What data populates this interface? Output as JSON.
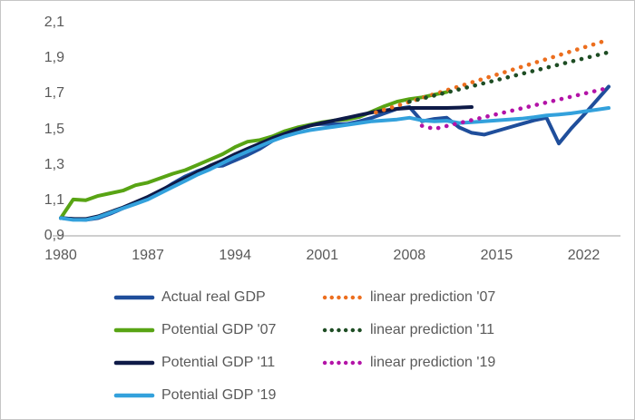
{
  "figure": {
    "background_color": "#ffffff",
    "border_color": "#c6c6c6",
    "title": ""
  },
  "chart_data": {
    "type": "line",
    "title": "",
    "xlabel": "",
    "ylabel": "",
    "grid": "off",
    "baseline_only": true,
    "axis_color": "#bfbfbf",
    "label_color": "#595959",
    "legend_position": "bottom",
    "legend_columns": 2,
    "x_axis": {
      "tick_labels": [
        "1980",
        "1987",
        "1994",
        "2001",
        "2008",
        "2015",
        "2022"
      ],
      "tick_values": [
        1980,
        1987,
        1994,
        2001,
        2008,
        2015,
        2022
      ],
      "range": [
        1980,
        2024
      ]
    },
    "y_axis": {
      "tick_labels": [
        "2,1",
        "1,9",
        "1,7",
        "1,5",
        "1,3",
        "1,1",
        "0,9"
      ],
      "tick_values": [
        2.1,
        1.9,
        1.7,
        1.5,
        1.3,
        1.1,
        0.9
      ],
      "range": [
        0.9,
        2.1
      ],
      "decimal_separator": ","
    },
    "series": [
      {
        "name": "Actual real GDP",
        "key": "actual-real-gdp",
        "style": "solid",
        "color": "#1f4e9b",
        "points": [
          [
            1980,
            1.0
          ],
          [
            1981,
            0.995
          ],
          [
            1982,
            0.99
          ],
          [
            1983,
            1.0
          ],
          [
            1984,
            1.025
          ],
          [
            1985,
            1.055
          ],
          [
            1986,
            1.085
          ],
          [
            1987,
            1.115
          ],
          [
            1988,
            1.15
          ],
          [
            1989,
            1.195
          ],
          [
            1990,
            1.235
          ],
          [
            1991,
            1.265
          ],
          [
            1992,
            1.29
          ],
          [
            1993,
            1.295
          ],
          [
            1994,
            1.325
          ],
          [
            1995,
            1.355
          ],
          [
            1996,
            1.39
          ],
          [
            1997,
            1.435
          ],
          [
            1998,
            1.475
          ],
          [
            1999,
            1.5
          ],
          [
            2000,
            1.525
          ],
          [
            2001,
            1.53
          ],
          [
            2002,
            1.528
          ],
          [
            2003,
            1.53
          ],
          [
            2004,
            1.545
          ],
          [
            2005,
            1.565
          ],
          [
            2006,
            1.59
          ],
          [
            2007,
            1.615
          ],
          [
            2008,
            1.625
          ],
          [
            2009,
            1.545
          ],
          [
            2010,
            1.558
          ],
          [
            2011,
            1.565
          ],
          [
            2012,
            1.51
          ],
          [
            2013,
            1.48
          ],
          [
            2014,
            1.47
          ],
          [
            2015,
            1.49
          ],
          [
            2016,
            1.51
          ],
          [
            2017,
            1.53
          ],
          [
            2018,
            1.55
          ],
          [
            2019,
            1.565
          ],
          [
            2020,
            1.42
          ],
          [
            2021,
            1.505
          ],
          [
            2022,
            1.58
          ],
          [
            2023,
            1.66
          ],
          [
            2024,
            1.74
          ]
        ]
      },
      {
        "name": "Potential GDP '07",
        "key": "potential-gdp-07",
        "style": "solid",
        "color": "#58a414",
        "points": [
          [
            1980,
            1.0
          ],
          [
            1981,
            1.105
          ],
          [
            1982,
            1.1
          ],
          [
            1983,
            1.125
          ],
          [
            1984,
            1.14
          ],
          [
            1985,
            1.155
          ],
          [
            1986,
            1.185
          ],
          [
            1987,
            1.2
          ],
          [
            1988,
            1.225
          ],
          [
            1989,
            1.25
          ],
          [
            1990,
            1.27
          ],
          [
            1991,
            1.3
          ],
          [
            1992,
            1.33
          ],
          [
            1993,
            1.36
          ],
          [
            1994,
            1.4
          ],
          [
            1995,
            1.43
          ],
          [
            1996,
            1.44
          ],
          [
            1997,
            1.46
          ],
          [
            1998,
            1.49
          ],
          [
            1999,
            1.51
          ],
          [
            2000,
            1.525
          ],
          [
            2001,
            1.54
          ],
          [
            2002,
            1.55
          ],
          [
            2003,
            1.555
          ],
          [
            2004,
            1.57
          ],
          [
            2005,
            1.6
          ],
          [
            2006,
            1.63
          ],
          [
            2007,
            1.655
          ],
          [
            2008,
            1.67
          ],
          [
            2009,
            1.68
          ],
          [
            2010,
            1.695
          ],
          [
            2011,
            1.71
          ]
        ]
      },
      {
        "name": "Potential GDP '11",
        "key": "potential-gdp-11",
        "style": "solid",
        "color": "#0e1a47",
        "points": [
          [
            1980,
            1.0
          ],
          [
            1981,
            0.995
          ],
          [
            1982,
            0.995
          ],
          [
            1983,
            1.01
          ],
          [
            1984,
            1.035
          ],
          [
            1985,
            1.06
          ],
          [
            1986,
            1.09
          ],
          [
            1987,
            1.12
          ],
          [
            1988,
            1.155
          ],
          [
            1989,
            1.19
          ],
          [
            1990,
            1.225
          ],
          [
            1991,
            1.26
          ],
          [
            1992,
            1.295
          ],
          [
            1993,
            1.325
          ],
          [
            1994,
            1.36
          ],
          [
            1995,
            1.39
          ],
          [
            1996,
            1.42
          ],
          [
            1997,
            1.45
          ],
          [
            1998,
            1.475
          ],
          [
            1999,
            1.5
          ],
          [
            2000,
            1.52
          ],
          [
            2001,
            1.535
          ],
          [
            2002,
            1.55
          ],
          [
            2003,
            1.565
          ],
          [
            2004,
            1.58
          ],
          [
            2005,
            1.595
          ],
          [
            2006,
            1.605
          ],
          [
            2007,
            1.615
          ],
          [
            2008,
            1.62
          ],
          [
            2009,
            1.62
          ],
          [
            2010,
            1.62
          ],
          [
            2011,
            1.62
          ],
          [
            2012,
            1.622
          ],
          [
            2013,
            1.625
          ]
        ]
      },
      {
        "name": "Potential GDP '19",
        "key": "potential-gdp-19",
        "style": "solid",
        "color": "#33a1dc",
        "points": [
          [
            1980,
            1.0
          ],
          [
            1981,
            0.99
          ],
          [
            1982,
            0.99
          ],
          [
            1983,
            1.005
          ],
          [
            1984,
            1.03
          ],
          [
            1985,
            1.055
          ],
          [
            1986,
            1.08
          ],
          [
            1987,
            1.105
          ],
          [
            1988,
            1.14
          ],
          [
            1989,
            1.175
          ],
          [
            1990,
            1.21
          ],
          [
            1991,
            1.245
          ],
          [
            1992,
            1.275
          ],
          [
            1993,
            1.31
          ],
          [
            1994,
            1.345
          ],
          [
            1995,
            1.375
          ],
          [
            1996,
            1.405
          ],
          [
            1997,
            1.435
          ],
          [
            1998,
            1.46
          ],
          [
            1999,
            1.48
          ],
          [
            2000,
            1.495
          ],
          [
            2001,
            1.505
          ],
          [
            2002,
            1.515
          ],
          [
            2003,
            1.525
          ],
          [
            2004,
            1.535
          ],
          [
            2005,
            1.545
          ],
          [
            2006,
            1.55
          ],
          [
            2007,
            1.555
          ],
          [
            2008,
            1.565
          ],
          [
            2009,
            1.55
          ],
          [
            2010,
            1.545
          ],
          [
            2011,
            1.548
          ],
          [
            2012,
            1.535
          ],
          [
            2013,
            1.54
          ],
          [
            2014,
            1.545
          ],
          [
            2015,
            1.55
          ],
          [
            2016,
            1.555
          ],
          [
            2017,
            1.56
          ],
          [
            2018,
            1.568
          ],
          [
            2019,
            1.578
          ],
          [
            2020,
            1.583
          ],
          [
            2021,
            1.59
          ],
          [
            2022,
            1.6
          ],
          [
            2023,
            1.61
          ],
          [
            2024,
            1.62
          ]
        ]
      },
      {
        "name": "linear prediction '07",
        "key": "linear-prediction-07",
        "style": "dotted",
        "color": "#ec6e1e",
        "points": [
          [
            2005.3,
            1.595
          ],
          [
            2023.8,
            2.0
          ]
        ]
      },
      {
        "name": "linear prediction '11",
        "key": "linear-prediction-11",
        "style": "dotted",
        "color": "#1e4d24",
        "points": [
          [
            2008,
            1.655
          ],
          [
            2023.8,
            1.93
          ]
        ]
      },
      {
        "name": "linear prediction '19",
        "key": "linear-prediction-19",
        "style": "dotted",
        "color": "#b313a7",
        "points": [
          [
            2009,
            1.52
          ],
          [
            2010,
            1.502
          ],
          [
            2023.8,
            1.73
          ]
        ]
      }
    ]
  },
  "legend": {
    "left_column_series": [
      0,
      1,
      2,
      3
    ],
    "right_column_series": [
      4,
      5,
      6
    ]
  }
}
